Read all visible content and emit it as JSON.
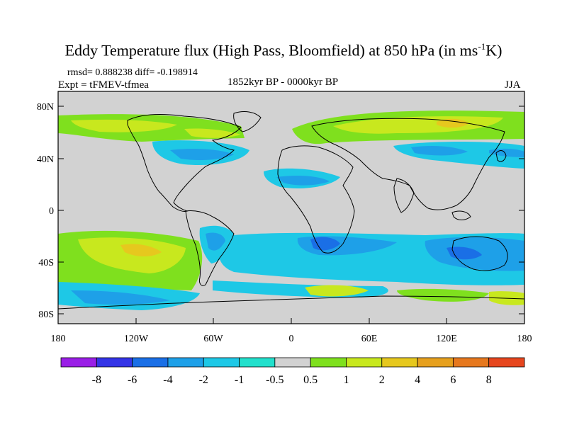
{
  "title": {
    "main": "Eddy Temperature flux (High Pass, Bloomfield) at 850 hPa (in ms",
    "exponent": "-1",
    "unit_end": "K)"
  },
  "stats": "rmsd= 0.888238 diff= -0.198914",
  "experiment": "Expt = tFMEV-tfmea",
  "period": "1852kyr BP - 0000kyr BP",
  "season": "JJA",
  "y_ticks": [
    "80N",
    "40N",
    "0",
    "40S",
    "80S"
  ],
  "x_ticks": [
    "180",
    "120W",
    "60W",
    "0",
    "60E",
    "120E",
    "180"
  ],
  "colorbar": {
    "labels": [
      "-8",
      "-6",
      "-4",
      "-2",
      "-1",
      "-0.5",
      "0.5",
      "1",
      "2",
      "4",
      "6",
      "8"
    ],
    "colors": [
      "#9a1fe6",
      "#3434e6",
      "#1a6fe6",
      "#1ea0e8",
      "#1ec8e6",
      "#22e0cc",
      "#d2d2d2",
      "#7fe01e",
      "#c8e81e",
      "#e6c81e",
      "#e6a01e",
      "#e6781e",
      "#e6461e"
    ]
  },
  "map_colors": {
    "background": "#d2d2d2",
    "land_outline": "#000000"
  }
}
